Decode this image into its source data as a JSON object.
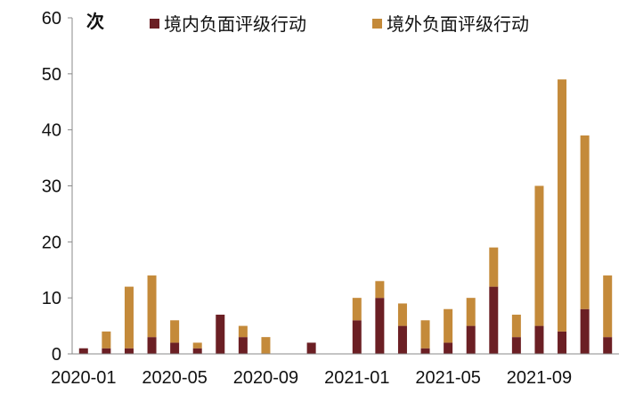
{
  "chart_data": {
    "type": "bar",
    "stacked": true,
    "ylabel": "次",
    "ylim": [
      0,
      60
    ],
    "yticks": [
      0,
      10,
      20,
      30,
      40,
      50,
      60
    ],
    "categories": [
      "2020-01",
      "2020-02",
      "2020-03",
      "2020-04",
      "2020-05",
      "2020-06",
      "2020-07",
      "2020-08",
      "2020-09",
      "2020-10",
      "2020-11",
      "2020-12",
      "2021-01",
      "2021-02",
      "2021-03",
      "2021-04",
      "2021-05",
      "2021-06",
      "2021-07",
      "2021-08",
      "2021-09",
      "2021-10",
      "2021-11",
      "2021-12"
    ],
    "xtick_labels": [
      "2020-01",
      "2020-05",
      "2020-09",
      "2021-01",
      "2021-05",
      "2021-09"
    ],
    "series": [
      {
        "name": "境内负面评级行动",
        "color": "#6b1f24",
        "values": [
          1,
          1,
          1,
          3,
          2,
          1,
          7,
          3,
          0,
          0,
          2,
          0,
          6,
          10,
          5,
          1,
          2,
          5,
          12,
          3,
          5,
          4,
          8,
          3
        ]
      },
      {
        "name": "境外负面评级行动",
        "color": "#c48a3a",
        "values": [
          0,
          3,
          11,
          11,
          4,
          1,
          0,
          2,
          3,
          0,
          0,
          0,
          4,
          3,
          4,
          5,
          6,
          5,
          7,
          4,
          25,
          45,
          31,
          11
        ]
      }
    ],
    "legend_position": "top",
    "grid": false
  }
}
